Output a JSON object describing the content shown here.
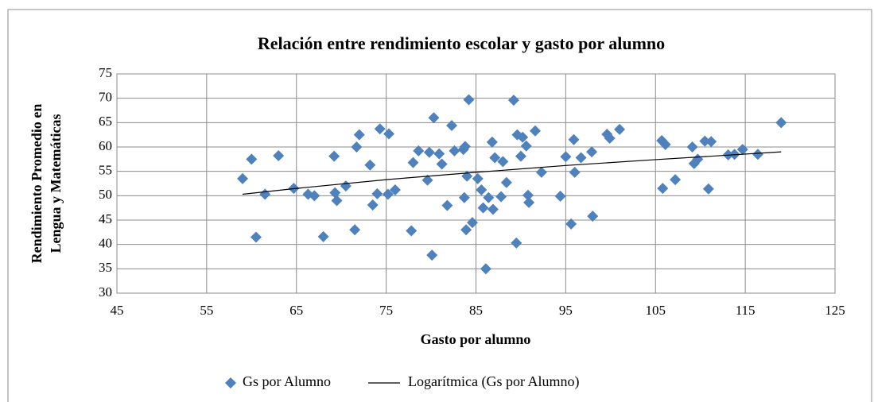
{
  "chart_data": {
    "type": "scatter",
    "title": "Relación entre rendimiento escolar  y gasto por alumno",
    "xlabel": "Gasto por alumno",
    "ylabel": [
      "Rendimiento Promedio en",
      "Lengua y Matemáticas"
    ],
    "xlim": [
      45,
      125
    ],
    "xticks": [
      45,
      55,
      65,
      75,
      85,
      95,
      105,
      115,
      125
    ],
    "ylim": [
      30,
      75
    ],
    "yticks": [
      30,
      35,
      40,
      45,
      50,
      55,
      60,
      65,
      70,
      75
    ],
    "grid": true,
    "legend": "bottom",
    "series": [
      {
        "name": "Gs por Alumno",
        "type": "scatter",
        "color": "#4f81bd",
        "x": [
          59,
          60,
          60.5,
          61.5,
          63,
          64.7,
          66.3,
          67,
          68,
          69.2,
          69.3,
          69.5,
          70.5,
          71.5,
          71.7,
          72,
          73.2,
          73.5,
          74,
          74.3,
          75.3,
          75.2,
          76,
          77.8,
          78,
          78.6,
          79.6,
          79.8,
          80.1,
          80.3,
          80.9,
          81.2,
          81.8,
          82.3,
          82.6,
          83.6,
          83.8,
          83.7,
          83.9,
          84,
          84.2,
          84.6,
          85.2,
          85.6,
          85.8,
          86.1,
          86.4,
          86.8,
          86.9,
          87.1,
          87.8,
          88,
          88.4,
          89.2,
          89.5,
          89.6,
          90,
          90.2,
          90.6,
          90.8,
          90.9,
          91.6,
          92.3,
          94.4,
          95,
          95.6,
          95.9,
          96,
          96.7,
          97.9,
          98,
          99.6,
          99.9,
          101,
          105.7,
          105.8,
          106.1,
          107.2,
          109.1,
          109.3,
          109.7,
          110.5,
          110.9,
          111.2,
          113.1,
          113.8,
          114.7,
          116.4,
          119
        ],
        "values": [
          53.5,
          57.5,
          41.5,
          50.3,
          58.2,
          51.5,
          50.3,
          50,
          41.6,
          58.1,
          50.6,
          49,
          52,
          43,
          60,
          62.5,
          56.3,
          48.1,
          50.4,
          63.7,
          62.7,
          50.3,
          51.2,
          42.8,
          56.8,
          59.2,
          53.2,
          58.9,
          37.8,
          66,
          58.6,
          56.5,
          48,
          64.4,
          59.2,
          59.5,
          60.1,
          49.6,
          43,
          54,
          69.7,
          44.5,
          53.5,
          51.2,
          47.5,
          35,
          49.6,
          61,
          47.2,
          57.8,
          49.8,
          57,
          52.7,
          69.6,
          40.3,
          62.5,
          58.1,
          62,
          60.2,
          50.1,
          48.6,
          63.3,
          54.8,
          49.9,
          58,
          44.2,
          61.5,
          54.8,
          57.8,
          59,
          45.8,
          62.6,
          61.8,
          63.6,
          61.3,
          51.5,
          60.5,
          53.3,
          60,
          56.6,
          57.5,
          61.2,
          51.4,
          61.1,
          58.4,
          58.5,
          59.5,
          58.5,
          65
        ]
      },
      {
        "name": "Logarítmica (Gs por Alumno)",
        "type": "line",
        "color": "#000000",
        "x": [
          59,
          65,
          75,
          85,
          95,
          105,
          119
        ],
        "values": [
          50.3,
          51.5,
          53.3,
          54.8,
          56.2,
          57.4,
          59.0
        ]
      }
    ]
  }
}
